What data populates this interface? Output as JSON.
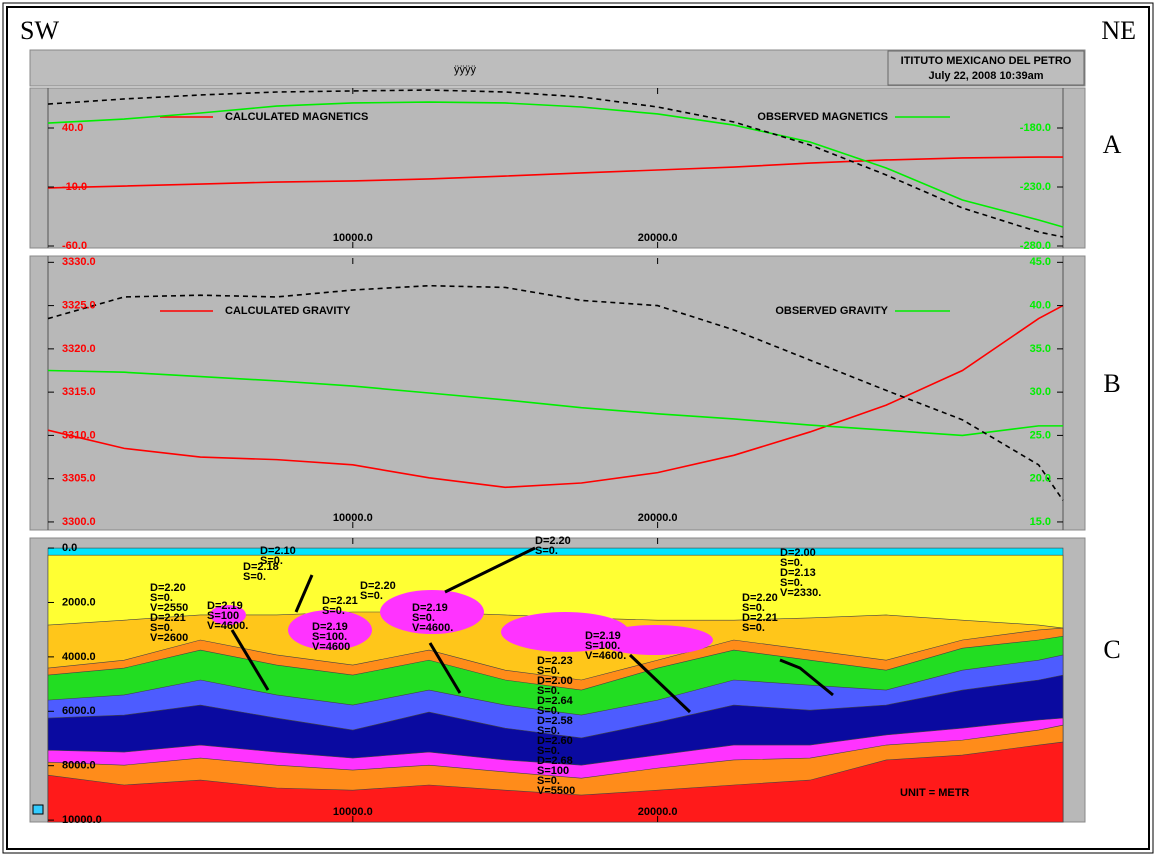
{
  "header": {
    "left": "SW",
    "right": "NE",
    "title": "ÿÿÿÿ",
    "institution": "ITITUTO MEXICANO DEL PETRO",
    "date": "July 22, 2008 10:39am"
  },
  "panels": [
    "A",
    "B",
    "C"
  ],
  "chart_data": [
    {
      "type": "line",
      "x": [
        0,
        2500,
        5000,
        7500,
        10000,
        12500,
        15000,
        17500,
        20000,
        22500,
        25000,
        27500,
        30000,
        32500,
        33300
      ],
      "xlim": [
        0,
        33300
      ],
      "xticks": [
        {
          "value": 10000,
          "label": "10000.0"
        },
        {
          "value": 20000,
          "label": "20000.0"
        }
      ],
      "ylim": [
        -61.7,
        73.9
      ],
      "yticks": [
        {
          "value": -60,
          "label": "-60.0"
        },
        {
          "value": -10,
          "label": "-10.0"
        },
        {
          "value": 40,
          "label": "40.0"
        }
      ],
      "ytick_color": "#ff0000",
      "y2lim": [
        -281.7,
        -146.1
      ],
      "y2ticks": [
        {
          "value": -280,
          "label": "-280.0"
        },
        {
          "value": -230,
          "label": "-230.0"
        },
        {
          "value": -180,
          "label": "-180.0"
        }
      ],
      "y2tick_color": "#00ee00",
      "series": [
        {
          "name": "CALCULATED MAGNETICS",
          "color": "#ff0000",
          "values": [
            -10.8,
            -9.2,
            -7.5,
            -5.8,
            -4.9,
            -3.2,
            -0.7,
            1.9,
            4.4,
            6.9,
            10.3,
            12.9,
            14.6,
            15.4,
            15.4
          ]
        },
        {
          "name": "OBSERVED MAGNETICS",
          "color": "#00ee00",
          "axis": "y2",
          "values": [
            -175.8,
            -172.4,
            -167.3,
            -161.4,
            -158.8,
            -158.0,
            -158.8,
            -162.2,
            -168.1,
            -177.5,
            -191.9,
            -213.9,
            -241.0,
            -258.0,
            -263.9
          ]
        },
        {
          "color": "#000000",
          "dashed": true,
          "values": [
            60.3,
            64.6,
            68.0,
            70.5,
            71.4,
            72.2,
            70.5,
            66.3,
            57.8,
            45.1,
            25.6,
            0.2,
            -27.8,
            -48.1,
            -52.4
          ]
        }
      ]
    },
    {
      "type": "line",
      "x": [
        0,
        2500,
        5000,
        7500,
        10000,
        12500,
        15000,
        17500,
        20000,
        22500,
        25000,
        27500,
        30000,
        32500,
        33300
      ],
      "xlim": [
        0,
        33300
      ],
      "xticks": [
        {
          "value": 10000,
          "label": "10000.0"
        },
        {
          "value": 20000,
          "label": "20000.0"
        }
      ],
      "ylim": [
        3299.3,
        3330.5
      ],
      "yticks": [
        {
          "value": 3300,
          "label": "3300.0"
        },
        {
          "value": 3305,
          "label": "3305.0"
        },
        {
          "value": 3310,
          "label": "3310.0"
        },
        {
          "value": 3315,
          "label": "3315.0"
        },
        {
          "value": 3320,
          "label": "3320.0"
        },
        {
          "value": 3325,
          "label": "3325.0"
        },
        {
          "value": 3330,
          "label": "3330.0"
        }
      ],
      "ytick_color": "#ff0000",
      "y2lim": [
        14.3,
        45.5
      ],
      "y2ticks": [
        {
          "value": 15,
          "label": "15.0"
        },
        {
          "value": 20,
          "label": "20.0"
        },
        {
          "value": 25,
          "label": "25.0"
        },
        {
          "value": 30,
          "label": "30.0"
        },
        {
          "value": 35,
          "label": "35.0"
        },
        {
          "value": 40,
          "label": "40.0"
        },
        {
          "value": 45,
          "label": "45.0"
        }
      ],
      "y2tick_color": "#00ee00",
      "series": [
        {
          "name": "CALCULATED GRAVITY",
          "color": "#ff0000",
          "values": [
            3310.6,
            3308.5,
            3307.5,
            3307.2,
            3306.6,
            3305.1,
            3304.0,
            3304.5,
            3305.7,
            3307.7,
            3310.4,
            3313.5,
            3317.5,
            3323.5,
            3325.0
          ]
        },
        {
          "name": "OBSERVED GRAVITY",
          "color": "#00ee00",
          "axis": "y2",
          "values": [
            32.5,
            32.3,
            31.8,
            31.3,
            30.7,
            29.9,
            29.1,
            28.2,
            27.5,
            26.9,
            26.2,
            25.6,
            25.0,
            26.1,
            26.1
          ]
        },
        {
          "color": "#000000",
          "dashed": true,
          "values": [
            3323.5,
            3326.0,
            3326.2,
            3326.0,
            3326.8,
            3327.3,
            3327.1,
            3325.6,
            3325.0,
            3322.2,
            3318.7,
            3315.2,
            3311.8,
            3306.6,
            3302.5
          ]
        }
      ]
    },
    {
      "type": "section",
      "x": [
        0,
        2500,
        5000,
        7500,
        10000,
        12500,
        15000,
        17500,
        20000,
        22500,
        25000,
        27500,
        30000,
        32500,
        33300
      ],
      "xlim": [
        0,
        33300
      ],
      "xticks": [
        {
          "value": 10000,
          "label": "10000.0"
        },
        {
          "value": 20000,
          "label": "20000.0"
        }
      ],
      "ylim": [
        10070,
        -370
      ],
      "yticks": [
        {
          "value": 0,
          "label": "0.0"
        },
        {
          "value": 2000,
          "label": "2000.0"
        },
        {
          "value": 4000,
          "label": "4000.0"
        },
        {
          "value": 6000,
          "label": "6000.0"
        },
        {
          "value": 8000,
          "label": "8000.0"
        },
        {
          "value": 10000,
          "label": "10000.0"
        }
      ],
      "ytick_color": "#000000",
      "layers": [
        {
          "color": "#00e5ff",
          "top": [
            0,
            0,
            0,
            0,
            0,
            0,
            0,
            0,
            0,
            0,
            0,
            0,
            0,
            0,
            0
          ]
        },
        {
          "color": "#ffff33",
          "top": [
            260,
            260,
            260,
            260,
            260,
            260,
            260,
            260,
            260,
            260,
            260,
            260,
            260,
            260,
            260
          ]
        },
        {
          "color": "#ffc61a",
          "top": [
            2830,
            2650,
            2460,
            2460,
            2350,
            2350,
            2460,
            2570,
            2650,
            2650,
            2570,
            2460,
            2650,
            2830,
            2940
          ]
        },
        {
          "color": "#ff8c1a",
          "top": [
            4410,
            4120,
            3380,
            3930,
            4300,
            3750,
            4490,
            4850,
            4120,
            3380,
            3750,
            4120,
            3380,
            3010,
            2940
          ]
        },
        {
          "color": "#22dd22",
          "top": [
            4670,
            4410,
            3750,
            4300,
            4670,
            4120,
            4850,
            5220,
            4410,
            3750,
            4120,
            4490,
            3680,
            3380,
            3240
          ]
        },
        {
          "color": "#4d5cff",
          "top": [
            5590,
            5400,
            4850,
            5400,
            5770,
            5220,
            5770,
            6140,
            5590,
            4850,
            5040,
            5220,
            4490,
            4120,
            3930
          ]
        },
        {
          "color": "#0a0aa0",
          "top": [
            6250,
            6140,
            5770,
            6250,
            6690,
            6030,
            6620,
            6980,
            6400,
            5770,
            5960,
            5770,
            5220,
            4850,
            4670
          ]
        },
        {
          "color": "#ff33ff",
          "top": [
            7430,
            7500,
            7240,
            7500,
            7720,
            7500,
            7790,
            7980,
            7610,
            7240,
            7240,
            6870,
            6620,
            6320,
            6250
          ]
        },
        {
          "color": "#ff8c1a",
          "top": [
            7870,
            7980,
            7720,
            7980,
            8160,
            7980,
            8230,
            8460,
            8090,
            7790,
            7720,
            7240,
            7060,
            6690,
            6510
          ]
        },
        {
          "color": "#ff1a1a",
          "top": [
            8350,
            8710,
            8530,
            8820,
            8900,
            8710,
            8900,
            9080,
            8900,
            8710,
            8530,
            7790,
            7610,
            7240,
            7130
          ]
        }
      ],
      "annotations": [
        [
          "D=2.10",
          "S=0."
        ],
        [
          "D=2.18",
          "S=0."
        ],
        [
          "D=2.20",
          "S=0.",
          "V=2550",
          "D=2.21",
          "S=0.",
          "V=2600"
        ],
        [
          "D=2.19",
          "S=100",
          "V=4600."
        ],
        [
          "D=2.21",
          "S=0."
        ],
        [
          "D=2.19",
          "S=100.",
          "V=4600"
        ],
        [
          "D=2.20",
          "S=0."
        ],
        [
          "D=2.19",
          "S=0.",
          "V=4600."
        ],
        [
          "D=2.20",
          "S=0."
        ],
        [
          "D=2.19",
          "S=100.",
          "V=4600."
        ],
        [
          "D=2.23",
          "S=0.",
          "D=2.00",
          "S=0.",
          "D=2.64",
          "S=0.",
          "D=2.58",
          "S=0.",
          "D=2.60",
          "S=0.",
          "D=2.68",
          "S=100",
          "S=0.",
          "V=5500"
        ],
        [
          "D=2.00",
          "S=0.",
          "D=2.13",
          "S=0.",
          "V=2330."
        ],
        [
          "D=2.20",
          "S=0.",
          "D=2.21",
          "S=0."
        ]
      ],
      "note": "UNIT = METR"
    }
  ]
}
